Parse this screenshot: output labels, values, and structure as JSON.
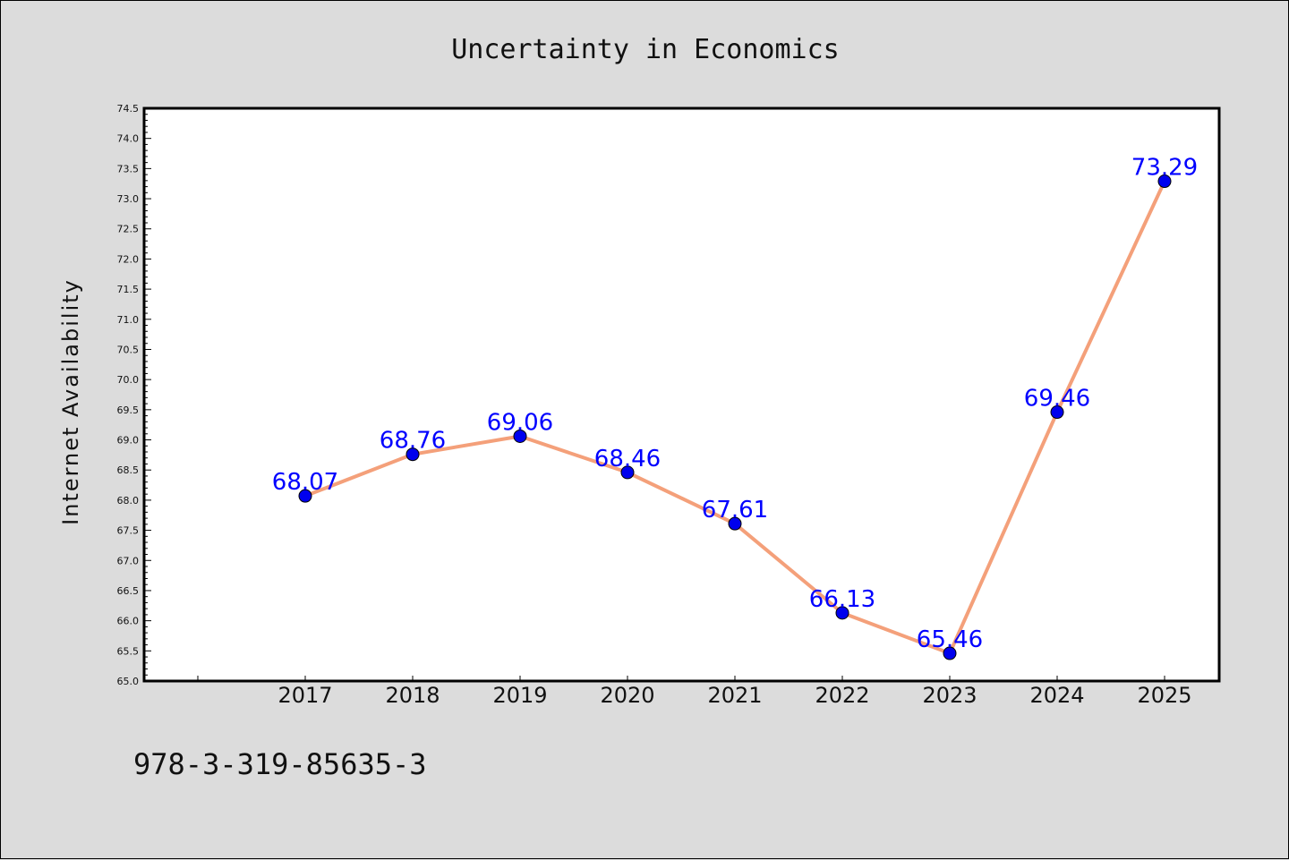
{
  "chart_data": {
    "type": "line",
    "title": "Uncertainty in Economics",
    "xlabel": "",
    "ylabel": "Internet Availability",
    "categories": [
      "2017",
      "2018",
      "2019",
      "2020",
      "2021",
      "2022",
      "2023",
      "2024",
      "2025"
    ],
    "series": [
      {
        "values": [
          68.07,
          68.76,
          69.06,
          68.46,
          67.61,
          66.13,
          65.46,
          69.46,
          73.29
        ],
        "labels": [
          "68.07",
          "68.76",
          "69.06",
          "68.46",
          "67.61",
          "66.13",
          "65.46",
          "69.46",
          "73.29"
        ]
      }
    ],
    "ylim": [
      65.0,
      74.5
    ],
    "yticks": [
      "65.0",
      "65.5",
      "66.0",
      "66.5",
      "67.0",
      "67.5",
      "68.0",
      "68.5",
      "69.0",
      "69.5",
      "70.0",
      "70.5",
      "71.0",
      "71.5",
      "72.0",
      "72.5",
      "73.0",
      "73.5",
      "74.0",
      "74.5"
    ],
    "grid": false,
    "colors": {
      "line": "#f4a07a",
      "marker": "#0000ee",
      "data_label": "#0000ff",
      "plot_bg": "#ffffff",
      "page_bg": "#dcdcdc"
    }
  },
  "footer_text": "978-3-319-85635-3"
}
